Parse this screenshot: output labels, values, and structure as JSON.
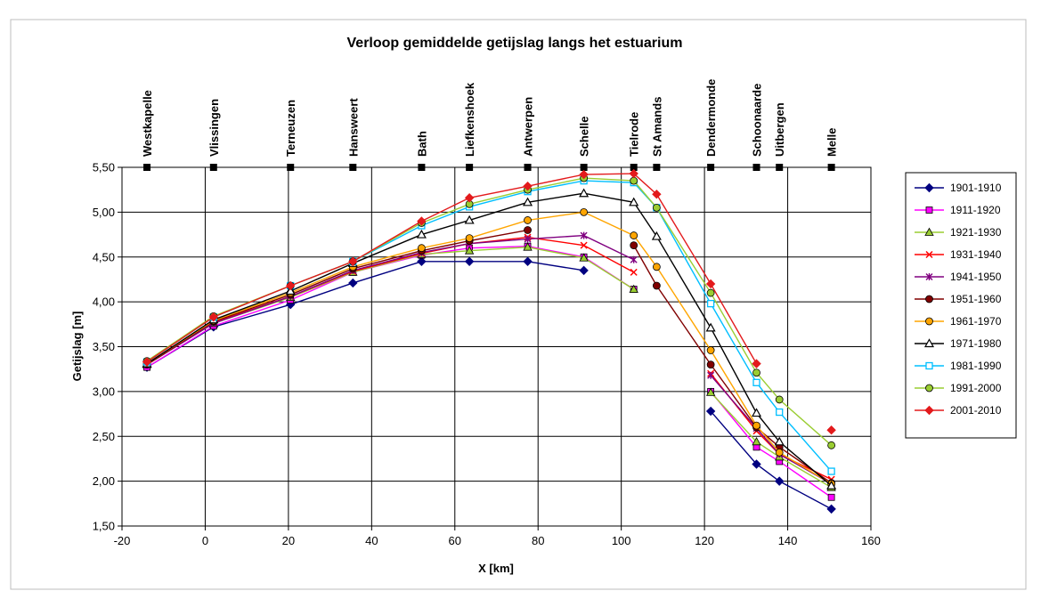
{
  "chart_data": {
    "type": "line",
    "title": "Verloop gemiddelde getijslag langs het estuarium",
    "xlabel": "X [km]",
    "ylabel": "Getijslag [m]",
    "xlim": [
      -20,
      160
    ],
    "ylim": [
      1.5,
      5.5
    ],
    "xticks": [
      "-20",
      "0",
      "20",
      "40",
      "60",
      "80",
      "100",
      "120",
      "140",
      "160"
    ],
    "yticks": [
      "1,50",
      "2,00",
      "2,50",
      "3,00",
      "3,50",
      "4,00",
      "4,50",
      "5,00",
      "5,50"
    ],
    "grid": true,
    "legend_position": "right",
    "stations": [
      {
        "name": "Westkapelle",
        "x": -14
      },
      {
        "name": "Vlissingen",
        "x": 2
      },
      {
        "name": "Terneuzen",
        "x": 20.5
      },
      {
        "name": "Hansweert",
        "x": 35.5
      },
      {
        "name": "Bath",
        "x": 52
      },
      {
        "name": "Liefkenshoek",
        "x": 63.5
      },
      {
        "name": "Antwerpen",
        "x": 77.5
      },
      {
        "name": "Schelle",
        "x": 91
      },
      {
        "name": "Tielrode",
        "x": 103
      },
      {
        "name": "St Amands",
        "x": 108.5
      },
      {
        "name": "Dendermonde",
        "x": 121.5
      },
      {
        "name": "Schoonaarde",
        "x": 132.5
      },
      {
        "name": "Uitbergen",
        "x": 138
      },
      {
        "name": "Melle",
        "x": 150.5
      }
    ],
    "series": [
      {
        "name": "1901-1910",
        "color": "#000080",
        "marker": "diamond",
        "points": [
          [
            -14,
            3.27
          ],
          [
            2,
            3.72
          ],
          [
            20.5,
            3.97
          ],
          [
            35.5,
            4.21
          ],
          [
            52,
            4.45
          ],
          [
            63.5,
            4.45
          ],
          [
            77.5,
            4.45
          ],
          [
            91,
            4.35
          ],
          null,
          [
            121.5,
            2.78
          ],
          [
            132.5,
            2.19
          ],
          [
            138,
            2.0
          ],
          [
            150.5,
            1.69
          ]
        ]
      },
      {
        "name": "1911-1920",
        "color": "#ff00ff",
        "marker": "square",
        "points": [
          [
            -14,
            3.27
          ],
          [
            2,
            3.73
          ],
          [
            20.5,
            4.02
          ],
          [
            35.5,
            4.33
          ],
          [
            52,
            4.52
          ],
          [
            63.5,
            4.6
          ],
          [
            77.5,
            4.62
          ],
          [
            91,
            4.5
          ],
          [
            103,
            4.14
          ],
          null,
          [
            121.5,
            3.0
          ],
          [
            132.5,
            2.38
          ],
          [
            138,
            2.22
          ],
          [
            150.5,
            1.82
          ]
        ]
      },
      {
        "name": "1921-1930",
        "color": "#9acd32",
        "marker": "triangle",
        "points": [
          [
            -14,
            3.3
          ],
          [
            2,
            3.76
          ],
          [
            20.5,
            4.05
          ],
          [
            35.5,
            4.33
          ],
          [
            52,
            4.53
          ],
          [
            63.5,
            4.57
          ],
          [
            77.5,
            4.61
          ],
          [
            91,
            4.49
          ],
          [
            103,
            4.14
          ],
          null,
          [
            121.5,
            2.99
          ],
          [
            132.5,
            2.44
          ],
          [
            138,
            2.27
          ],
          [
            150.5,
            1.93
          ]
        ]
      },
      {
        "name": "1931-1940",
        "color": "#ff0000",
        "marker": "x",
        "points": [
          [
            -14,
            3.3
          ],
          [
            2,
            3.77
          ],
          [
            20.5,
            4.06
          ],
          [
            35.5,
            4.34
          ],
          [
            52,
            4.54
          ],
          [
            63.5,
            4.65
          ],
          [
            77.5,
            4.72
          ],
          [
            91,
            4.63
          ],
          [
            103,
            4.33
          ],
          null,
          [
            121.5,
            3.2
          ],
          [
            132.5,
            2.56
          ],
          [
            138,
            2.3
          ],
          [
            150.5,
            2.02
          ]
        ]
      },
      {
        "name": "1941-1950",
        "color": "#800080",
        "marker": "star",
        "points": [
          [
            -14,
            3.3
          ],
          [
            2,
            3.76
          ],
          [
            20.5,
            4.06
          ],
          [
            35.5,
            4.35
          ],
          [
            52,
            4.55
          ],
          [
            63.5,
            4.65
          ],
          [
            77.5,
            4.7
          ],
          [
            91,
            4.74
          ],
          [
            103,
            4.47
          ],
          null,
          [
            121.5,
            3.18
          ],
          [
            132.5,
            2.59
          ],
          [
            138,
            2.3
          ],
          [
            150.5,
            1.97
          ]
        ]
      },
      {
        "name": "1951-1960",
        "color": "#800000",
        "marker": "circle",
        "points": [
          [
            -14,
            3.3
          ],
          [
            2,
            3.78
          ],
          [
            20.5,
            4.08
          ],
          [
            35.5,
            4.37
          ],
          [
            52,
            4.57
          ],
          [
            63.5,
            4.68
          ],
          [
            77.5,
            4.8
          ],
          null,
          [
            103,
            4.63
          ],
          [
            108.5,
            4.18
          ],
          [
            121.5,
            3.3
          ],
          [
            132.5,
            2.6
          ],
          [
            138,
            2.38
          ],
          [
            150.5,
            1.98
          ]
        ]
      },
      {
        "name": "1961-1970",
        "color": "#ffa500",
        "marker": "circle",
        "points": [
          [
            -14,
            3.31
          ],
          [
            2,
            3.79
          ],
          [
            20.5,
            4.1
          ],
          [
            35.5,
            4.39
          ],
          [
            52,
            4.6
          ],
          [
            63.5,
            4.71
          ],
          [
            77.5,
            4.91
          ],
          [
            91,
            5.0
          ],
          [
            103,
            4.74
          ],
          [
            108.5,
            4.39
          ],
          [
            121.5,
            3.46
          ],
          [
            132.5,
            2.62
          ],
          [
            138,
            2.32
          ],
          [
            150.5,
            1.97
          ]
        ]
      },
      {
        "name": "1971-1980",
        "color": "#000000",
        "marker": "triangle-open",
        "points": [
          [
            -14,
            3.31
          ],
          [
            2,
            3.8
          ],
          [
            20.5,
            4.12
          ],
          [
            35.5,
            4.43
          ],
          [
            52,
            4.75
          ],
          [
            63.5,
            4.91
          ],
          [
            77.5,
            5.11
          ],
          [
            91,
            5.21
          ],
          [
            103,
            5.11
          ],
          [
            108.5,
            4.73
          ],
          [
            121.5,
            3.71
          ],
          [
            132.5,
            2.76
          ],
          [
            138,
            2.44
          ],
          [
            150.5,
            1.95
          ]
        ]
      },
      {
        "name": "1981-1990",
        "color": "#00bfff",
        "marker": "square-open",
        "points": [
          [
            -14,
            3.33
          ],
          [
            2,
            3.83
          ],
          [
            20.5,
            4.18
          ],
          [
            35.5,
            4.45
          ],
          [
            52,
            4.85
          ],
          [
            63.5,
            5.06
          ],
          [
            77.5,
            5.23
          ],
          [
            91,
            5.35
          ],
          [
            103,
            5.33
          ],
          [
            108.5,
            5.05
          ],
          [
            121.5,
            3.98
          ],
          [
            132.5,
            3.1
          ],
          [
            138,
            2.77
          ],
          [
            150.5,
            2.11
          ]
        ]
      },
      {
        "name": "1991-2000",
        "color": "#9acd32",
        "marker": "circle",
        "points": [
          [
            -14,
            3.34
          ],
          [
            2,
            3.84
          ],
          [
            20.5,
            4.18
          ],
          [
            35.5,
            4.45
          ],
          [
            52,
            4.88
          ],
          [
            63.5,
            5.09
          ],
          [
            77.5,
            5.25
          ],
          [
            91,
            5.38
          ],
          [
            103,
            5.35
          ],
          [
            108.5,
            5.05
          ],
          [
            121.5,
            4.1
          ],
          [
            132.5,
            3.21
          ],
          [
            138,
            2.91
          ],
          [
            150.5,
            2.4
          ]
        ]
      },
      {
        "name": "2001-2010",
        "color": "#e31a1c",
        "marker": "diamond",
        "points": [
          [
            -14,
            3.33
          ],
          [
            2,
            3.83
          ],
          [
            20.5,
            4.18
          ],
          [
            35.5,
            4.45
          ],
          [
            52,
            4.9
          ],
          [
            63.5,
            5.16
          ],
          [
            77.5,
            5.29
          ],
          [
            91,
            5.42
          ],
          [
            103,
            5.43
          ],
          [
            108.5,
            5.2
          ],
          [
            121.5,
            4.2
          ],
          [
            132.5,
            3.31
          ],
          null,
          [
            150.5,
            2.57
          ]
        ]
      }
    ]
  }
}
